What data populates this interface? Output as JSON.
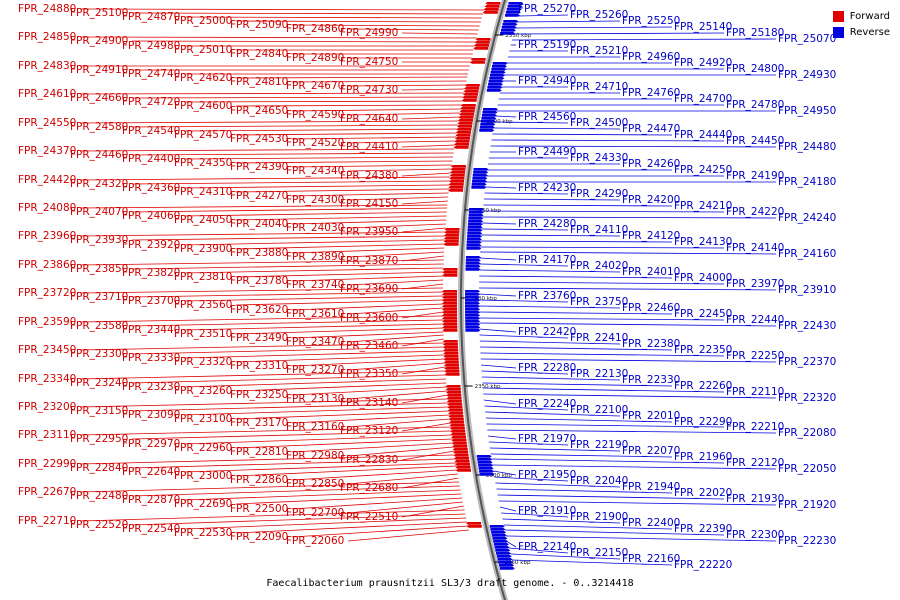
{
  "caption": "Faecalibacterium prausnitzii SL3/3 draft genome. - 0..3214418",
  "legend": [
    {
      "label": "Forward",
      "color": "#e00000"
    },
    {
      "label": "Reverse",
      "color": "#0000e0"
    }
  ],
  "ticks": [
    "2550 kbp",
    "2500 kbp",
    "2450 kbp",
    "2400 kbp",
    "2350 kbp",
    "2300 kbp",
    "2250 kbp"
  ],
  "forward_genes": [
    "FPR_24880",
    "FPR_25100",
    "FPR_24870",
    "FPR_25000",
    "FPR_25090",
    "FPR_24860",
    "FPR_24990",
    "FPR_24850",
    "FPR_24900",
    "FPR_24980",
    "FPR_25010",
    "FPR_24840",
    "FPR_24890",
    "FPR_24750",
    "FPR_24830",
    "FPR_24910",
    "FPR_24740",
    "FPR_24620",
    "FPR_24810",
    "FPR_24670",
    "FPR_24730",
    "FPR_24610",
    "FPR_24660",
    "FPR_24720",
    "FPR_24600",
    "FPR_24650",
    "FPR_24590",
    "FPR_24640",
    "FPR_24550",
    "FPR_24580",
    "FPR_24540",
    "FPR_24570",
    "FPR_24530",
    "FPR_24520",
    "FPR_24410",
    "FPR_24370",
    "FPR_24460",
    "FPR_24400",
    "FPR_24350",
    "FPR_24390",
    "FPR_24340",
    "FPR_24380",
    "FPR_24420",
    "FPR_24320",
    "FPR_24360",
    "FPR_24310",
    "FPR_24270",
    "FPR_24300",
    "FPR_24150",
    "FPR_24080",
    "FPR_24070",
    "FPR_24060",
    "FPR_24050",
    "FPR_24040",
    "FPR_24030",
    "FPR_23950",
    "FPR_23960",
    "FPR_23930",
    "FPR_23920",
    "FPR_23900",
    "FPR_23880",
    "FPR_23890",
    "FPR_23870",
    "FPR_23860",
    "FPR_23850",
    "FPR_23820",
    "FPR_23810",
    "FPR_23780",
    "FPR_23740",
    "FPR_23690",
    "FPR_23720",
    "FPR_23710",
    "FPR_23700",
    "FPR_23560",
    "FPR_23620",
    "FPR_23610",
    "FPR_23600",
    "FPR_23590",
    "FPR_23580",
    "FPR_23440",
    "FPR_23510",
    "FPR_23490",
    "FPR_23470",
    "FPR_23460",
    "FPR_23450",
    "FPR_23300",
    "FPR_23330",
    "FPR_23320",
    "FPR_23310",
    "FPR_23270",
    "FPR_23350",
    "FPR_23340",
    "FPR_23240",
    "FPR_23230",
    "FPR_23260",
    "FPR_23250",
    "FPR_23130",
    "FPR_23140",
    "FPR_23200",
    "FPR_23150",
    "FPR_23090",
    "FPR_23100",
    "FPR_23170",
    "FPR_23160",
    "FPR_23120",
    "FPR_23110",
    "FPR_22950",
    "FPR_22970",
    "FPR_22960",
    "FPR_22810",
    "FPR_22980",
    "FPR_22830",
    "FPR_22990",
    "FPR_22840",
    "FPR_22640",
    "FPR_23000",
    "FPR_22860",
    "FPR_22850",
    "FPR_22680",
    "FPR_22670",
    "FPR_22480",
    "FPR_22870",
    "FPR_22690",
    "FPR_22500",
    "FPR_22700",
    "FPR_22510",
    "FPR_22710",
    "FPR_22520",
    "FPR_22540",
    "FPR_22530",
    "FPR_22090",
    "FPR_22060"
  ],
  "reverse_genes": [
    "FPR_25270",
    "FPR_25260",
    "FPR_25250",
    "FPR_25140",
    "FPR_25180",
    "FPR_25070",
    "FPR_25190",
    "FPR_25210",
    "FPR_24960",
    "FPR_24920",
    "FPR_24800",
    "FPR_24930",
    "FPR_24940",
    "FPR_24710",
    "FPR_24760",
    "FPR_24700",
    "FPR_24780",
    "FPR_24950",
    "FPR_24560",
    "FPR_24500",
    "FPR_24470",
    "FPR_24440",
    "FPR_24450",
    "FPR_24480",
    "FPR_24490",
    "FPR_24330",
    "FPR_24260",
    "FPR_24250",
    "FPR_24190",
    "FPR_24180",
    "FPR_24230",
    "FPR_24290",
    "FPR_24200",
    "FPR_24210",
    "FPR_24220",
    "FPR_24240",
    "FPR_24280",
    "FPR_24110",
    "FPR_24120",
    "FPR_24130",
    "FPR_24140",
    "FPR_24160",
    "FPR_24170",
    "FPR_24020",
    "FPR_24010",
    "FPR_24000",
    "FPR_23970",
    "FPR_23910",
    "FPR_23760",
    "FPR_23750",
    "FPR_22460",
    "FPR_22450",
    "FPR_22440",
    "FPR_22430",
    "FPR_22420",
    "FPR_22410",
    "FPR_22380",
    "FPR_22350",
    "FPR_22250",
    "FPR_22370",
    "FPR_22280",
    "FPR_22130",
    "FPR_22330",
    "FPR_22260",
    "FPR_22110",
    "FPR_22320",
    "FPR_22240",
    "FPR_22100",
    "FPR_22010",
    "FPR_22290",
    "FPR_22210",
    "FPR_22080",
    "FPR_21970",
    "FPR_22190",
    "FPR_22070",
    "FPR_21960",
    "FPR_22120",
    "FPR_22050",
    "FPR_21950",
    "FPR_22040",
    "FPR_21940",
    "FPR_22020",
    "FPR_21930",
    "FPR_21920",
    "FPR_21910",
    "FPR_21900",
    "FPR_22400",
    "FPR_22390",
    "FPR_22300",
    "FPR_22230",
    "FPR_22140",
    "FPR_22150",
    "FPR_22160",
    "FPR_22220"
  ]
}
